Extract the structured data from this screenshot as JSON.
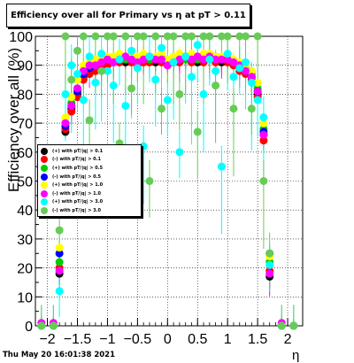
{
  "title": "Efficiency over all for Primary vs   η at pT > 0.11",
  "timestamp": "Thu May 20 16:01:38 2021",
  "chart_data": {
    "type": "scatter",
    "xlabel": "η",
    "ylabel": "Efficiency over all (%)",
    "xlim": [
      -2.2,
      2.25
    ],
    "ylim": [
      0,
      100
    ],
    "x_ticks": [
      "−2",
      "−1.5",
      "−1",
      "−0.5",
      "0",
      "0.5",
      "1",
      "1.5",
      "2"
    ],
    "x_tick_values": [
      -2,
      -1.5,
      -1,
      -0.5,
      0,
      0.5,
      1,
      1.5,
      2
    ],
    "y_ticks": [
      "0",
      "10",
      "20",
      "30",
      "40",
      "50",
      "60",
      "70",
      "80",
      "90",
      "100"
    ],
    "y_tick_values": [
      0,
      10,
      20,
      30,
      40,
      50,
      60,
      70,
      80,
      90,
      100
    ],
    "grid": true,
    "legend_position": "middle-left",
    "series": [
      {
        "name": "(+) with pT/|q| > 0.1",
        "color": "#000000",
        "x": [
          -2.1,
          -1.9,
          -1.8,
          -1.7,
          -1.6,
          -1.5,
          -1.4,
          -1.3,
          -1.2,
          -1.1,
          -1.0,
          -0.9,
          -0.8,
          -0.7,
          -0.6,
          -0.5,
          -0.4,
          -0.3,
          -0.2,
          -0.1,
          0.0,
          0.1,
          0.2,
          0.3,
          0.4,
          0.5,
          0.6,
          0.7,
          0.8,
          0.9,
          1.0,
          1.1,
          1.2,
          1.3,
          1.4,
          1.5,
          1.6,
          1.7,
          1.9,
          2.1
        ],
        "y": [
          0,
          0,
          18,
          67,
          75,
          80,
          86,
          88,
          89,
          90,
          91,
          91,
          92,
          91,
          92,
          91,
          92,
          92,
          91,
          92,
          90,
          91,
          92,
          92,
          92,
          91,
          92,
          93,
          92,
          91,
          92,
          90,
          89,
          88,
          86,
          80,
          66,
          17,
          0,
          0
        ]
      },
      {
        "name": "(-) with pT/|q| > 0.1",
        "color": "#ff0000",
        "x": [
          -2.1,
          -1.9,
          -1.8,
          -1.7,
          -1.6,
          -1.5,
          -1.4,
          -1.3,
          -1.2,
          -1.1,
          -1.0,
          -0.9,
          -0.8,
          -0.7,
          -0.6,
          -0.5,
          -0.4,
          -0.3,
          -0.2,
          -0.1,
          0.0,
          0.1,
          0.2,
          0.3,
          0.4,
          0.5,
          0.6,
          0.7,
          0.8,
          0.9,
          1.0,
          1.1,
          1.2,
          1.3,
          1.4,
          1.5,
          1.6,
          1.7,
          1.9,
          2.1
        ],
        "y": [
          0,
          0,
          20,
          68,
          74,
          79,
          85,
          87,
          88,
          90,
          90,
          91,
          91,
          92,
          91,
          90,
          91,
          91,
          92,
          91,
          90,
          91,
          91,
          92,
          91,
          92,
          91,
          92,
          91,
          92,
          91,
          90,
          88,
          87,
          85,
          79,
          64,
          19,
          0,
          0
        ]
      },
      {
        "name": "(+) with pT/|q| > 0.5",
        "color": "#00cc00",
        "x": [
          -2.1,
          -1.9,
          -1.8,
          -1.7,
          -1.6,
          -1.5,
          -1.4,
          -1.3,
          -1.2,
          -1.1,
          -1.0,
          -0.9,
          -0.8,
          -0.7,
          -0.6,
          -0.5,
          -0.4,
          -0.3,
          -0.2,
          -0.1,
          0.0,
          0.1,
          0.2,
          0.3,
          0.4,
          0.5,
          0.6,
          0.7,
          0.8,
          0.9,
          1.0,
          1.1,
          1.2,
          1.3,
          1.4,
          1.5,
          1.6,
          1.7,
          1.9,
          2.1
        ],
        "y": [
          0,
          0,
          22,
          70,
          77,
          82,
          88,
          90,
          91,
          92,
          92,
          92,
          93,
          92,
          93,
          92,
          93,
          92,
          92,
          93,
          91,
          92,
          93,
          92,
          93,
          92,
          93,
          93,
          92,
          92,
          92,
          91,
          90,
          89,
          87,
          82,
          68,
          22,
          0,
          0
        ]
      },
      {
        "name": "(-) with pT/|q| > 0.5",
        "color": "#0000ff",
        "x": [
          -2.1,
          -1.9,
          -1.8,
          -1.7,
          -1.6,
          -1.5,
          -1.4,
          -1.3,
          -1.2,
          -1.1,
          -1.0,
          -0.9,
          -0.8,
          -0.7,
          -0.6,
          -0.5,
          -0.4,
          -0.3,
          -0.2,
          -0.1,
          0.0,
          0.1,
          0.2,
          0.3,
          0.4,
          0.5,
          0.6,
          0.7,
          0.8,
          0.9,
          1.0,
          1.1,
          1.2,
          1.3,
          1.4,
          1.5,
          1.6,
          1.7,
          1.9,
          2.1
        ],
        "y": [
          0,
          0,
          25,
          69,
          76,
          81,
          87,
          89,
          90,
          91,
          92,
          92,
          92,
          93,
          92,
          91,
          92,
          93,
          92,
          92,
          91,
          92,
          92,
          93,
          92,
          93,
          92,
          92,
          93,
          92,
          92,
          91,
          89,
          88,
          86,
          81,
          67,
          25,
          0,
          0
        ]
      },
      {
        "name": "(+) with pT/|q| > 1.0",
        "color": "#ffff00",
        "x": [
          -2.1,
          -1.9,
          -1.8,
          -1.7,
          -1.6,
          -1.5,
          -1.4,
          -1.3,
          -1.2,
          -1.1,
          -1.0,
          -0.9,
          -0.8,
          -0.7,
          -0.6,
          -0.5,
          -0.4,
          -0.3,
          -0.2,
          -0.1,
          0.0,
          0.1,
          0.2,
          0.3,
          0.4,
          0.5,
          0.6,
          0.7,
          0.8,
          0.9,
          1.0,
          1.1,
          1.2,
          1.3,
          1.4,
          1.5,
          1.6,
          1.7,
          1.9,
          2.1
        ],
        "y": [
          0,
          0,
          27,
          72,
          79,
          85,
          90,
          91,
          92,
          93,
          93,
          93,
          94,
          93,
          93,
          93,
          94,
          93,
          93,
          94,
          92,
          93,
          94,
          93,
          94,
          93,
          94,
          94,
          93,
          93,
          93,
          92,
          91,
          90,
          88,
          84,
          70,
          24,
          0,
          0
        ]
      },
      {
        "name": "(-) with pT/|q| > 1.0",
        "color": "#ff00ff",
        "x": [
          -2.1,
          -1.9,
          -1.8,
          -1.7,
          -1.6,
          -1.5,
          -1.4,
          -1.3,
          -1.2,
          -1.1,
          -1.0,
          -0.9,
          -0.8,
          -0.7,
          -0.6,
          -0.5,
          -0.4,
          -0.3,
          -0.2,
          -0.1,
          0.0,
          0.1,
          0.2,
          0.3,
          0.4,
          0.5,
          0.6,
          0.7,
          0.8,
          0.9,
          1.0,
          1.1,
          1.2,
          1.3,
          1.4,
          1.5,
          1.6,
          1.7,
          1.9,
          2.1
        ],
        "y": [
          1,
          1,
          19,
          70,
          76,
          82,
          88,
          90,
          90,
          91,
          92,
          91,
          92,
          93,
          92,
          91,
          92,
          93,
          92,
          92,
          90,
          91,
          92,
          93,
          92,
          93,
          92,
          93,
          92,
          92,
          92,
          91,
          90,
          88,
          86,
          81,
          66,
          18,
          1,
          0
        ]
      },
      {
        "name": "(+) with pT/|q| > 3.0",
        "color": "#00ffff",
        "x": [
          -2.1,
          -1.9,
          -1.8,
          -1.7,
          -1.6,
          -1.5,
          -1.4,
          -1.3,
          -1.2,
          -1.1,
          -1.0,
          -0.9,
          -0.8,
          -0.7,
          -0.6,
          -0.5,
          -0.4,
          -0.3,
          -0.2,
          -0.1,
          0.0,
          0.1,
          0.2,
          0.3,
          0.4,
          0.5,
          0.6,
          0.7,
          0.8,
          0.9,
          1.0,
          1.1,
          1.2,
          1.3,
          1.4,
          1.5,
          1.6,
          1.7,
          1.9,
          2.1
        ],
        "y": [
          0,
          0,
          12,
          80,
          90,
          87,
          78,
          93,
          84,
          94,
          88,
          83,
          92,
          76,
          95,
          89,
          62,
          93,
          85,
          96,
          78,
          91,
          60,
          93,
          86,
          97,
          80,
          92,
          88,
          55,
          94,
          86,
          89,
          91,
          84,
          78,
          72,
          21,
          0,
          0
        ]
      },
      {
        "name": "(-) with pT/|q| > 3.0",
        "color": "#66cc55",
        "x": [
          -2.1,
          -1.9,
          -1.8,
          -1.7,
          -1.6,
          -1.5,
          -1.4,
          -1.3,
          -1.2,
          -1.1,
          -1.0,
          -0.9,
          -0.8,
          -0.7,
          -0.6,
          -0.5,
          -0.4,
          -0.3,
          -0.2,
          -0.1,
          0.0,
          0.1,
          0.2,
          0.3,
          0.4,
          0.5,
          0.6,
          0.7,
          0.8,
          0.9,
          1.0,
          1.1,
          1.2,
          1.3,
          1.4,
          1.5,
          1.6,
          1.7,
          1.9,
          2.1
        ],
        "y": [
          0,
          0,
          33,
          100,
          85,
          95,
          100,
          71,
          100,
          88,
          100,
          100,
          63,
          100,
          82,
          100,
          100,
          50,
          100,
          75,
          100,
          100,
          80,
          100,
          100,
          67,
          100,
          100,
          83,
          100,
          100,
          75,
          100,
          100,
          75,
          100,
          50,
          25,
          0,
          0
        ]
      }
    ]
  }
}
